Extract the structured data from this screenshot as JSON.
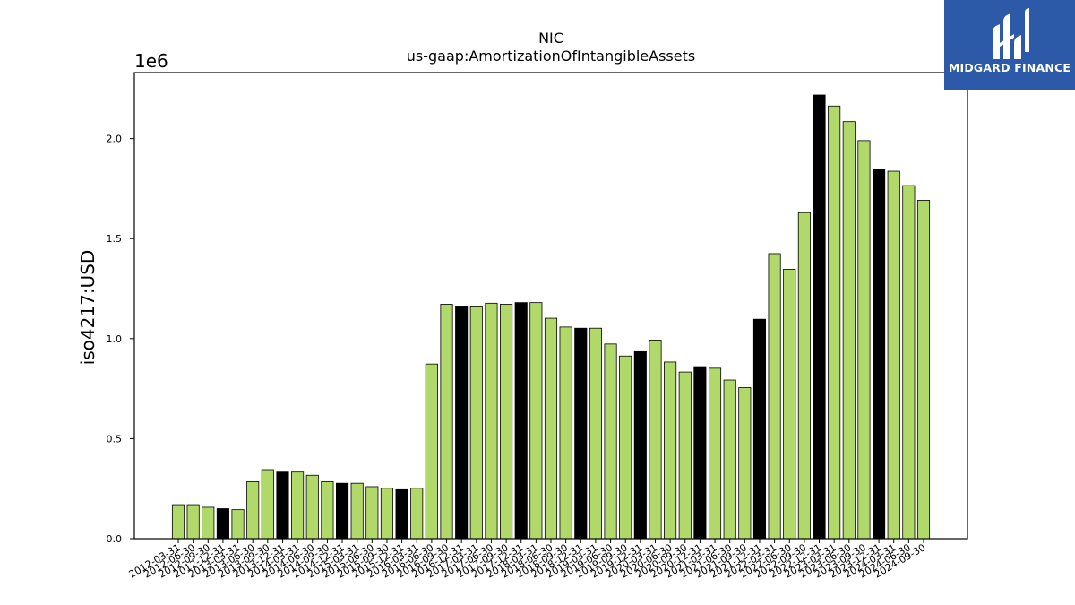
{
  "chart_data": {
    "type": "bar",
    "title": "NIC",
    "subtitle": "us-gaap:AmortizationOfIntangibleAssets",
    "ylabel": "iso4217:USD",
    "xlabel": "",
    "y_scale_label": "1e6",
    "y_tick_labels": [
      "0.0",
      "0.5",
      "1.0",
      "1.5",
      "2.0"
    ],
    "y_ticks": [
      0,
      500000,
      1000000,
      1500000,
      2000000
    ],
    "ylim": [
      0,
      2330000
    ],
    "grid": false,
    "colors": {
      "default": "#b0d96a",
      "highlight": "#000000",
      "edge": "#000000"
    },
    "categories": [
      "2012-03-31",
      "2012-06-30",
      "2012-09-30",
      "2012-12-31",
      "2013-03-31",
      "2013-06-30",
      "2013-09-30",
      "2013-12-31",
      "2014-03-31",
      "2014-06-30",
      "2014-09-30",
      "2014-12-31",
      "2015-03-31",
      "2015-06-30",
      "2015-09-30",
      "2015-12-31",
      "2016-03-31",
      "2016-06-30",
      "2016-09-30",
      "2016-12-31",
      "2017-03-31",
      "2017-06-30",
      "2017-09-30",
      "2017-12-31",
      "2018-03-31",
      "2018-06-30",
      "2018-09-30",
      "2018-12-31",
      "2019-03-31",
      "2019-06-30",
      "2019-09-30",
      "2019-12-31",
      "2020-03-31",
      "2020-06-30",
      "2020-09-30",
      "2020-12-31",
      "2021-03-31",
      "2021-06-30",
      "2021-09-30",
      "2021-12-31",
      "2022-03-31",
      "2022-06-30",
      "2022-09-30",
      "2022-12-31",
      "2023-03-31",
      "2023-06-30",
      "2023-09-30",
      "2023-12-31",
      "2024-03-31",
      "2024-06-30",
      "2024-09-30"
    ],
    "values": [
      170000,
      170000,
      157000,
      150000,
      145000,
      285000,
      345000,
      333000,
      333000,
      317000,
      285000,
      277000,
      277000,
      260000,
      252000,
      245000,
      252000,
      873000,
      1172000,
      1163000,
      1163000,
      1177000,
      1172000,
      1180000,
      1180000,
      1102000,
      1058000,
      1052000,
      1052000,
      973000,
      913000,
      935000,
      993000,
      883000,
      833000,
      860000,
      852000,
      793000,
      755000,
      1097000,
      1425000,
      1347000,
      1630000,
      2218000,
      2163000,
      2085000,
      1990000,
      1845000,
      1837000,
      1765000,
      1692000
    ],
    "highlight": [
      false,
      false,
      false,
      true,
      false,
      false,
      false,
      true,
      false,
      false,
      false,
      true,
      false,
      false,
      false,
      true,
      false,
      false,
      false,
      true,
      false,
      false,
      false,
      true,
      false,
      false,
      false,
      true,
      false,
      false,
      false,
      true,
      false,
      false,
      false,
      true,
      false,
      false,
      false,
      true,
      false,
      false,
      false,
      true,
      false,
      false,
      false,
      true,
      false,
      false,
      false
    ]
  },
  "logo": {
    "text": "MIDGARD FINANCE",
    "color": "#2d5aa8"
  }
}
